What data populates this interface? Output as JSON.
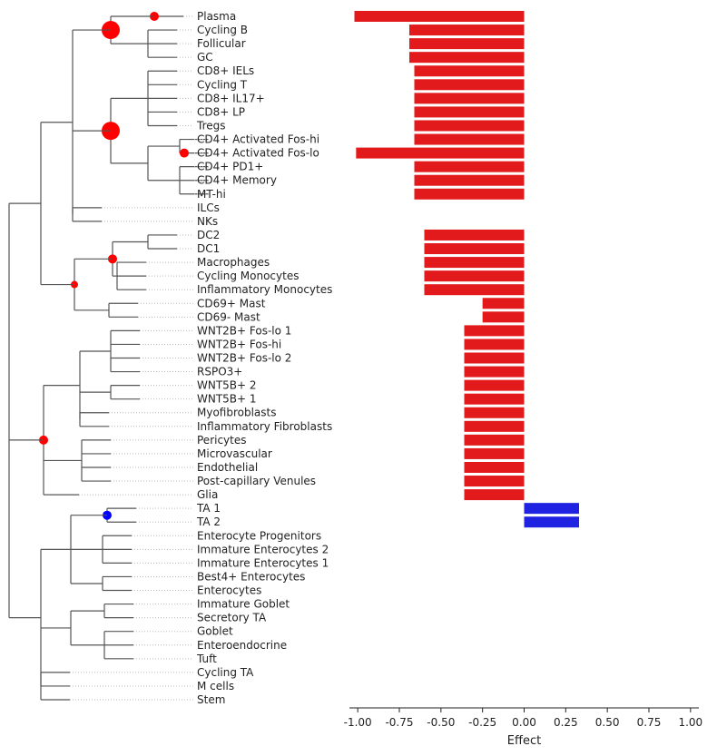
{
  "chart_data": {
    "type": "bar",
    "orientation": "horizontal",
    "xlabel": "Effect",
    "xlim": [
      -1.05,
      1.05
    ],
    "xticks": [
      "-1.00",
      "-0.75",
      "-0.50",
      "-0.25",
      "0.00",
      "0.25",
      "0.50",
      "0.75",
      "1.00"
    ],
    "xtick_values": [
      -1.0,
      -0.75,
      -0.5,
      -0.25,
      0.0,
      0.25,
      0.5,
      0.75,
      1.0
    ],
    "colors": {
      "negative": "#e31a1c",
      "positive": "#1f22e0",
      "node_red": "#ff0000",
      "node_blue": "#0000ff"
    },
    "categories": [
      "Plasma",
      "Cycling B",
      "Follicular",
      "GC",
      "CD8+ IELs",
      "Cycling T",
      "CD8+ IL17+",
      "CD8+ LP",
      "Tregs",
      "CD4+ Activated Fos-hi",
      "CD4+ Activated Fos-lo",
      "CD4+ PD1+",
      "CD4+ Memory",
      "MT-hi",
      "ILCs",
      "NKs",
      "DC2",
      "DC1",
      "Macrophages",
      "Cycling Monocytes",
      "Inflammatory Monocytes",
      "CD69+ Mast",
      "CD69- Mast",
      "WNT2B+ Fos-lo 1",
      "WNT2B+ Fos-hi",
      "WNT2B+ Fos-lo 2",
      "RSPO3+",
      "WNT5B+ 2",
      "WNT5B+ 1",
      "Myofibroblasts",
      "Inflammatory Fibroblasts",
      "Pericytes",
      "Microvascular",
      "Endothelial",
      "Post-capillary Venules",
      "Glia",
      "TA 1",
      "TA 2",
      "Enterocyte Progenitors",
      "Immature Enterocytes 2",
      "Immature Enterocytes 1",
      "Best4+ Enterocytes",
      "Enterocytes",
      "Immature Goblet",
      "Secretory TA",
      "Goblet",
      "Enteroendocrine",
      "Tuft",
      "Cycling TA",
      "M cells",
      "Stem"
    ],
    "values": [
      -1.02,
      -0.69,
      -0.69,
      -0.69,
      -0.66,
      -0.66,
      -0.66,
      -0.66,
      -0.66,
      -0.66,
      -1.01,
      -0.66,
      -0.66,
      -0.66,
      0,
      0,
      -0.6,
      -0.6,
      -0.6,
      -0.6,
      -0.6,
      -0.25,
      -0.25,
      -0.36,
      -0.36,
      -0.36,
      -0.36,
      -0.36,
      -0.36,
      -0.36,
      -0.36,
      -0.36,
      -0.36,
      -0.36,
      -0.36,
      -0.36,
      0.33,
      0.33,
      0,
      0,
      0,
      0,
      0,
      0,
      0,
      0,
      0,
      0,
      0,
      0,
      0
    ],
    "tree_nodes": [
      {
        "id": "root",
        "depth": 0,
        "parent": null
      },
      {
        "id": "immune",
        "depth": 1,
        "parent": "root"
      },
      {
        "id": "lymph",
        "depth": 2,
        "parent": "immune"
      },
      {
        "id": "bcells",
        "depth": 3,
        "parent": "lymph"
      },
      {
        "id": "bsub",
        "depth": 4,
        "parent": "bcells",
        "effect": true,
        "size": 10,
        "color": "red"
      },
      {
        "id": "plasma_n",
        "depth": 5,
        "parent": "bsub",
        "leaves": [
          "Plasma"
        ],
        "effect": true,
        "size": 5,
        "color": "red"
      },
      {
        "id": "bsub_leaves",
        "depth": 5,
        "parent": "bsub",
        "leaves": [
          "Cycling B",
          "Follicular",
          "GC"
        ]
      },
      {
        "id": "tcells",
        "depth": 3,
        "parent": "lymph"
      },
      {
        "id": "tsub",
        "depth": 4,
        "parent": "tcells",
        "effect": true,
        "size": 10,
        "color": "red"
      },
      {
        "id": "cd8",
        "depth": 5,
        "parent": "tsub",
        "leaves": [
          "CD8+ IELs",
          "Cycling T",
          "CD8+ IL17+",
          "CD8+ LP",
          "Tregs"
        ]
      },
      {
        "id": "cd4",
        "depth": 5,
        "parent": "tsub"
      },
      {
        "id": "cd4a",
        "depth": 6,
        "parent": "cd4",
        "leaves": [
          "CD4+ Activated Fos-hi",
          "CD4+ Activated Fos-lo"
        ],
        "lo_effect": true
      },
      {
        "id": "cd4b",
        "depth": 6,
        "parent": "cd4",
        "leaves": [
          "CD4+ PD1+",
          "CD4+ Memory",
          "MT-hi"
        ]
      },
      {
        "id": "ilcnk",
        "depth": 3,
        "parent": "lymph",
        "leaves": [
          "ILCs",
          "NKs"
        ]
      },
      {
        "id": "myeloid",
        "depth": 2,
        "parent": "immune",
        "effect": true,
        "size": 4,
        "color": "red"
      },
      {
        "id": "mono",
        "depth": 3,
        "parent": "myeloid",
        "effect": true,
        "size": 5,
        "color": "red"
      },
      {
        "id": "dc",
        "depth": 4,
        "parent": "mono",
        "leaves": [
          "DC2",
          "DC1"
        ]
      },
      {
        "id": "mac",
        "depth": 4,
        "parent": "mono",
        "leaves": [
          "Macrophages",
          "Cycling Monocytes",
          "Inflammatory Monocytes"
        ]
      },
      {
        "id": "mast",
        "depth": 3,
        "parent": "myeloid",
        "leaves": [
          "CD69+ Mast",
          "CD69- Mast"
        ]
      },
      {
        "id": "stromal",
        "depth": 1,
        "parent": "root",
        "effect": true,
        "size": 5,
        "color": "red"
      },
      {
        "id": "fibro",
        "depth": 2,
        "parent": "stromal"
      },
      {
        "id": "wnt2b",
        "depth": 3,
        "parent": "fibro",
        "leaves": [
          "WNT2B+ Fos-lo 1",
          "WNT2B+ Fos-hi",
          "WNT2B+ Fos-lo 2",
          "RSPO3+"
        ]
      },
      {
        "id": "wnt5b",
        "depth": 3,
        "parent": "fibro",
        "leaves": [
          "WNT5B+ 2",
          "WNT5B+ 1"
        ]
      },
      {
        "id": "myo",
        "depth": 3,
        "parent": "fibro",
        "leaves": [
          "Myofibroblasts",
          "Inflammatory Fibroblasts"
        ]
      },
      {
        "id": "vasc",
        "depth": 2,
        "parent": "stromal",
        "leaves": [
          "Pericytes",
          "Microvascular",
          "Endothelial",
          "Post-capillary Venules"
        ]
      },
      {
        "id": "glia",
        "depth": 2,
        "parent": "stromal",
        "leaves": [
          "Glia"
        ]
      },
      {
        "id": "epi",
        "depth": 1,
        "parent": "root"
      },
      {
        "id": "abs",
        "depth": 2,
        "parent": "epi"
      },
      {
        "id": "ta",
        "depth": 3,
        "parent": "abs",
        "leaves": [
          "TA 1",
          "TA 2"
        ],
        "effect": true,
        "size": 5,
        "color": "blue"
      },
      {
        "id": "ent1",
        "depth": 3,
        "parent": "abs",
        "leaves": [
          "Enterocyte Progenitors",
          "Immature Enterocytes 2",
          "Immature Enterocytes 1"
        ]
      },
      {
        "id": "ent2",
        "depth": 3,
        "parent": "abs",
        "leaves": [
          "Best4+ Enterocytes",
          "Enterocytes"
        ]
      },
      {
        "id": "sec",
        "depth": 2,
        "parent": "epi"
      },
      {
        "id": "gob",
        "depth": 3,
        "parent": "sec",
        "leaves": [
          "Immature Goblet",
          "Secretory TA"
        ]
      },
      {
        "id": "gob2",
        "depth": 3,
        "parent": "sec",
        "leaves": [
          "Goblet",
          "Enteroendocrine",
          "Tuft"
        ]
      },
      {
        "id": "other",
        "depth": 2,
        "parent": "epi",
        "leaves": [
          "Cycling TA",
          "M cells",
          "Stem"
        ]
      }
    ]
  }
}
